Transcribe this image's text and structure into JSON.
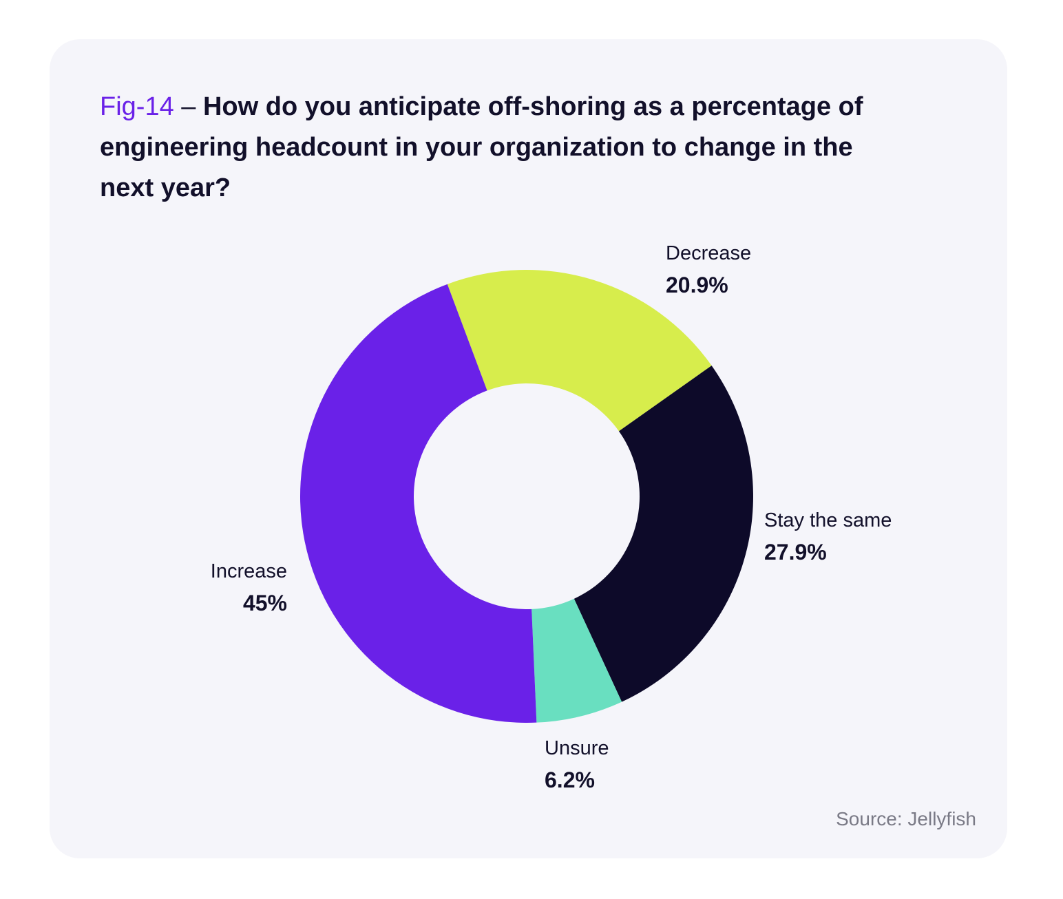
{
  "title": {
    "fig": "Fig-14",
    "dash": " – ",
    "question": "How do you anticipate off-shoring as a percentage of engineering headcount in your organization to change in the next year?"
  },
  "source": "Source: Jellyfish",
  "chart_data": {
    "type": "pie",
    "donut": true,
    "title": "Fig-14 – How do you anticipate off-shoring as a percentage of engineering headcount in your organization to change in the next year?",
    "slices": [
      {
        "name": "Decrease",
        "value": 20.9,
        "label": "20.9%",
        "color": "#d7ed4c"
      },
      {
        "name": "Stay the same",
        "value": 27.9,
        "label": "27.9%",
        "color": "#0d0a29"
      },
      {
        "name": "Unsure",
        "value": 6.2,
        "label": "6.2%",
        "color": "#69dfc0"
      },
      {
        "name": "Increase",
        "value": 45,
        "label": "45%",
        "color": "#6a21e8"
      }
    ]
  }
}
